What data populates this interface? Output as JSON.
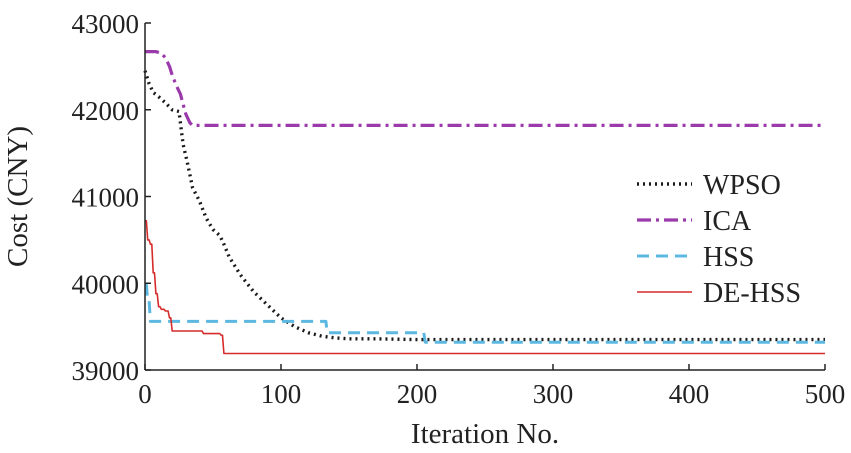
{
  "chart_data": {
    "type": "line",
    "title": "",
    "xlabel": "Iteration No.",
    "ylabel": "Cost (CNY)",
    "xlim": [
      0,
      500
    ],
    "ylim": [
      39000,
      43000
    ],
    "xticks": [
      0,
      100,
      200,
      300,
      400,
      500
    ],
    "yticks": [
      39000,
      40000,
      41000,
      42000,
      43000
    ],
    "grid": false,
    "legend_position": "right",
    "series": [
      {
        "name": "WPSO",
        "color": "#1a1a1a",
        "dash": "dotted",
        "x": [
          0,
          3,
          6,
          10,
          15,
          20,
          25,
          28,
          31,
          35,
          40,
          45,
          50,
          55,
          58,
          62,
          66,
          70,
          75,
          80,
          90,
          100,
          110,
          120,
          130,
          140,
          150,
          170,
          200,
          300,
          400,
          500
        ],
        "y": [
          42450,
          42300,
          42200,
          42150,
          42080,
          42000,
          41980,
          41600,
          41400,
          41100,
          40950,
          40750,
          40620,
          40550,
          40450,
          40300,
          40200,
          40100,
          40000,
          39900,
          39750,
          39600,
          39500,
          39430,
          39390,
          39370,
          39360,
          39360,
          39350,
          39350,
          39350,
          39350
        ]
      },
      {
        "name": "ICA",
        "color": "#9b3bab",
        "dash": "dashdot",
        "x": [
          0,
          8,
          12,
          15,
          18,
          20,
          23,
          26,
          30,
          33,
          35,
          100,
          200,
          300,
          400,
          500
        ],
        "y": [
          42670,
          42670,
          42650,
          42600,
          42500,
          42400,
          42280,
          42180,
          41950,
          41850,
          41820,
          41820,
          41820,
          41820,
          41820,
          41820
        ]
      },
      {
        "name": "HSS",
        "color": "#5cb8e0",
        "dash": "dashed",
        "x": [
          0,
          1,
          2,
          3,
          4,
          5,
          133,
          134,
          135,
          205,
          206,
          500
        ],
        "y": [
          39980,
          39980,
          39800,
          39800,
          39560,
          39560,
          39560,
          39430,
          39430,
          39430,
          39320,
          39320
        ]
      },
      {
        "name": "DE-HSS",
        "color": "#d62b2b",
        "dash": "solid",
        "x": [
          0,
          1,
          2,
          3,
          4,
          5,
          6,
          7,
          8,
          9,
          10,
          11,
          12,
          14,
          15,
          17,
          18,
          19,
          20,
          42,
          43,
          55,
          56,
          57,
          58,
          500
        ],
        "y": [
          40720,
          40720,
          40500,
          40500,
          40450,
          40450,
          40120,
          40120,
          39880,
          39880,
          39730,
          39730,
          39700,
          39700,
          39680,
          39680,
          39600,
          39600,
          39450,
          39450,
          39420,
          39420,
          39400,
          39400,
          39190,
          39190
        ]
      }
    ]
  }
}
